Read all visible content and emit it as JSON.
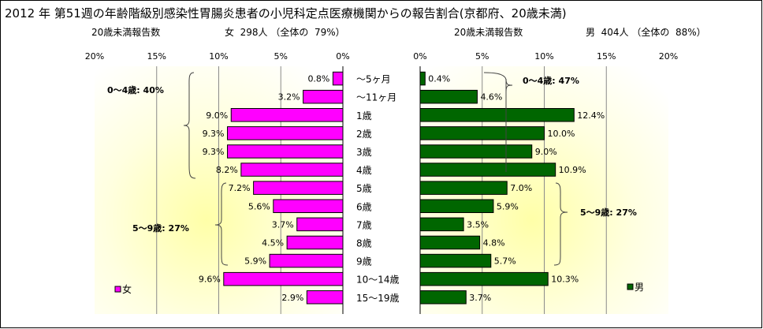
{
  "title": "2012 年 第51週の年齢階級別感染性胃腸炎患者の小児科定点医療機関からの報告割合(京都府、20歳未満)",
  "panels": {
    "female": {
      "header_left": "20歳未満報告数",
      "header_right": "女  298人 （全体の  79%）",
      "legend": "女",
      "color": "#FF00FF",
      "group_a": "0～4歳: 40%",
      "group_b": "5～9歳: 27%"
    },
    "male": {
      "header_left": "20歳未満報告数",
      "header_right": "男  404人 （全体の  88%）",
      "legend": "男",
      "color": "#006600",
      "group_a": "0～4歳: 47%",
      "group_b": "5～9歳: 27%"
    }
  },
  "chart_data": [
    {
      "type": "bar",
      "orientation": "horizontal",
      "direction": "right-to-left",
      "categories": [
        "～5ヶ月",
        "～11ヶ月",
        "1歳",
        "2歳",
        "3歳",
        "4歳",
        "5歳",
        "6歳",
        "7歳",
        "8歳",
        "9歳",
        "10～14歳",
        "15～19歳"
      ],
      "series": [
        {
          "name": "女",
          "values": [
            0.8,
            3.2,
            9.0,
            9.3,
            9.3,
            8.2,
            7.2,
            5.6,
            3.7,
            4.5,
            5.9,
            9.6,
            2.9
          ]
        }
      ],
      "value_labels": [
        "0.8%",
        "3.2%",
        "9.0%",
        "9.3%",
        "9.3%",
        "8.2%",
        "7.2%",
        "5.6%",
        "3.7%",
        "4.5%",
        "5.9%",
        "9.6%",
        "2.9%"
      ],
      "xlim": [
        0,
        20
      ],
      "ticks": [
        "20%",
        "15%",
        "10%",
        "5%",
        "0%"
      ],
      "legend": "bottom-left",
      "grid": true
    },
    {
      "type": "bar",
      "orientation": "horizontal",
      "direction": "left-to-right",
      "categories": [
        "～5ヶ月",
        "～11ヶ月",
        "1歳",
        "2歳",
        "3歳",
        "4歳",
        "5歳",
        "6歳",
        "7歳",
        "8歳",
        "9歳",
        "10～14歳",
        "15～19歳"
      ],
      "series": [
        {
          "name": "男",
          "values": [
            0.4,
            4.6,
            12.4,
            10.0,
            9.0,
            10.9,
            7.0,
            5.9,
            3.5,
            4.8,
            5.7,
            10.3,
            3.7
          ]
        }
      ],
      "value_labels": [
        "0.4%",
        "4.6%",
        "12.4%",
        "10.0%",
        "9.0%",
        "10.9%",
        "7.0%",
        "5.9%",
        "3.5%",
        "4.8%",
        "5.7%",
        "10.3%",
        "3.7%"
      ],
      "xlim": [
        0,
        20
      ],
      "ticks": [
        "0%",
        "5%",
        "10%",
        "15%",
        "20%"
      ],
      "legend": "bottom-right",
      "grid": true
    }
  ]
}
